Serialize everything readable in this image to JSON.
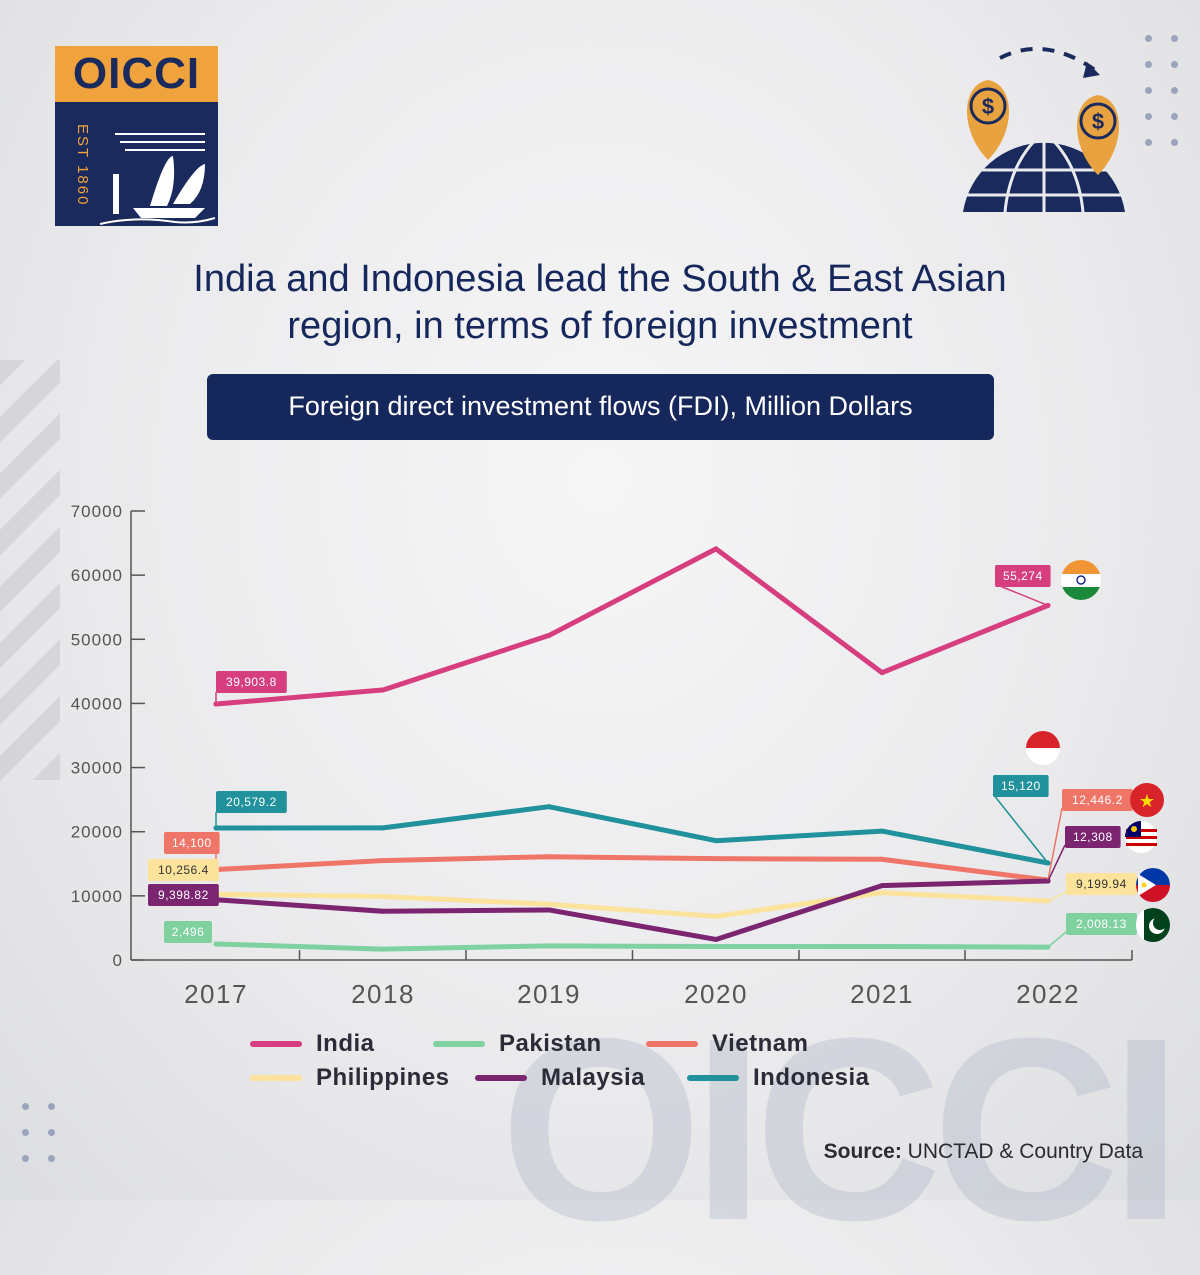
{
  "logo": {
    "name": "OICCI",
    "est": "EST 1860"
  },
  "title_lines": [
    "India and Indonesia lead the South & East Asian",
    "region, in terms of foreign investment"
  ],
  "subtitle": "Foreign direct investment flows (FDI), Million Dollars",
  "source_label": "Source:",
  "source_text": "UNCTAD & Country Data",
  "watermark": "OICCI",
  "chart_data": {
    "type": "line",
    "title": "Foreign direct investment flows (FDI), Million Dollars",
    "x": [
      "2017",
      "2018",
      "2019",
      "2020",
      "2021",
      "2022"
    ],
    "ylim": [
      0,
      70000
    ],
    "yticks": [
      "0",
      "10000",
      "20000",
      "30000",
      "40000",
      "50000",
      "60000",
      "70000"
    ],
    "grid": false,
    "legend_position": "bottom",
    "series": [
      {
        "name": "India",
        "color": "#d63e7f",
        "values": [
          39903.8,
          42100,
          50600,
          64100,
          44800,
          55274
        ],
        "start_label": "39,903.8",
        "end_label": "55,274",
        "flag": "india"
      },
      {
        "name": "Pakistan",
        "color": "#7fd1a0",
        "values": [
          2496,
          1700,
          2200,
          2100,
          2100,
          2008.13
        ],
        "start_label": "2,496",
        "end_label": "2,008.13",
        "flag": "pakistan"
      },
      {
        "name": "Vietnam",
        "color": "#ef7568",
        "values": [
          14100,
          15500,
          16100,
          15800,
          15700,
          12446.2
        ],
        "start_label": "14,100",
        "end_label": "12,446.2",
        "flag": "vietnam"
      },
      {
        "name": "Philippines",
        "color": "#fbe39c",
        "values": [
          10256.4,
          9900,
          8700,
          6800,
          10500,
          9199.94
        ],
        "start_label": "10,256.4",
        "end_label": "9,199.94",
        "flag": "philippines"
      },
      {
        "name": "Malaysia",
        "color": "#7b2470",
        "values": [
          9398.82,
          7600,
          7800,
          3200,
          11600,
          12308
        ],
        "start_label": "9,398.82",
        "end_label": "12,308",
        "flag": "malaysia"
      },
      {
        "name": "Indonesia",
        "color": "#21919b",
        "values": [
          20579.2,
          20600,
          23900,
          18600,
          20100,
          15120
        ],
        "start_label": "20,579.2",
        "end_label": "15,120",
        "flag": "indonesia"
      }
    ]
  }
}
